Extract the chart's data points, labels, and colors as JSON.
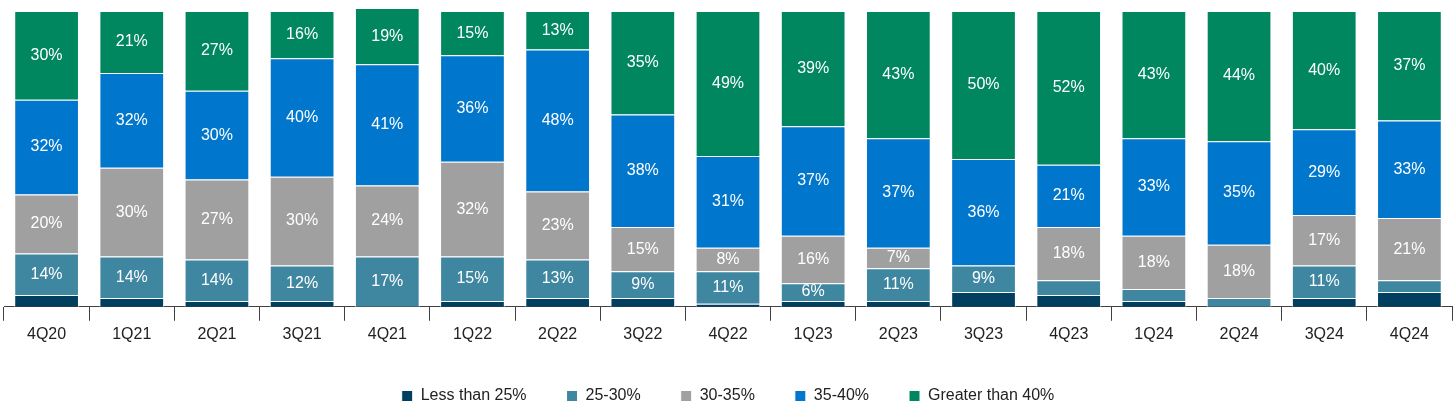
{
  "chart_data": {
    "type": "bar",
    "stacked": true,
    "data_labels": false,
    "legend": "bottom",
    "categories": [
      "4Q20",
      "1Q21",
      "2Q21",
      "3Q21",
      "4Q21",
      "1Q22",
      "2Q22",
      "3Q22",
      "4Q22",
      "1Q23",
      "2Q23",
      "3Q23",
      "4Q23",
      "1Q24",
      "2Q24",
      "3Q24",
      "4Q24"
    ],
    "series": [
      {
        "name": "Less than 25%",
        "color": "#003f5f",
        "values": [
          4,
          3,
          2,
          2,
          0,
          2,
          3,
          3,
          1,
          2,
          2,
          5,
          4,
          2,
          0,
          3,
          5
        ],
        "value_labels": [
          null,
          null,
          null,
          null,
          null,
          null,
          null,
          null,
          null,
          null,
          null,
          null,
          null,
          null,
          null,
          null,
          null
        ]
      },
      {
        "name": "25-30%",
        "color": "#3f87a0",
        "values": [
          14,
          14,
          14,
          12,
          17,
          15,
          13,
          9,
          11,
          6,
          11,
          9,
          5,
          4,
          3,
          11,
          4
        ],
        "value_labels": [
          "14%",
          "14%",
          "14%",
          "12%",
          "17%",
          "15%",
          "13%",
          "9%",
          "11%",
          "6%",
          "11%",
          "9%",
          null,
          null,
          null,
          "11%",
          null
        ]
      },
      {
        "name": "30-35%",
        "color": "#a0a0a0",
        "values": [
          20,
          30,
          27,
          30,
          24,
          32,
          23,
          15,
          8,
          16,
          7,
          0,
          18,
          18,
          18,
          17,
          21
        ],
        "value_labels": [
          "20%",
          "30%",
          "27%",
          "30%",
          "24%",
          "32%",
          "23%",
          "15%",
          "8%",
          "16%",
          "7%",
          null,
          "18%",
          "18%",
          "18%",
          "17%",
          "21%"
        ]
      },
      {
        "name": "35-40%",
        "color": "#0077cc",
        "values": [
          32,
          32,
          30,
          40,
          41,
          36,
          48,
          38,
          31,
          37,
          37,
          36,
          21,
          33,
          35,
          29,
          33
        ],
        "value_labels": [
          "32%",
          "32%",
          "30%",
          "40%",
          "41%",
          "36%",
          "48%",
          "38%",
          "31%",
          "37%",
          "37%",
          "36%",
          "21%",
          "33%",
          "35%",
          "29%",
          "33%"
        ]
      },
      {
        "name": "Greater than 40%",
        "color": "#00875f",
        "values": [
          30,
          21,
          27,
          16,
          19,
          15,
          13,
          35,
          49,
          39,
          43,
          50,
          52,
          43,
          44,
          40,
          37
        ],
        "value_labels": [
          "30%",
          "21%",
          "27%",
          "16%",
          "19%",
          "15%",
          "13%",
          "35%",
          "49%",
          "39%",
          "43%",
          "50%",
          "52%",
          "43%",
          "44%",
          "40%",
          "37%"
        ]
      }
    ]
  }
}
